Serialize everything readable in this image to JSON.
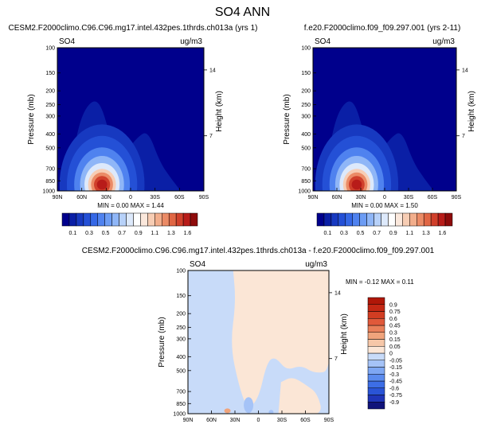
{
  "figure": {
    "title": "SO4 ANN"
  },
  "chart_data": [
    {
      "type": "heatmap",
      "panel": "top-left",
      "title": "CESM2.F2000climo.C96.C96.mg17.intel.432pes.1thrds.ch013a (yrs 1)",
      "left_label": "SO4",
      "right_label": "ug/m3",
      "ylabel": "Pressure (mb)",
      "y2label": "Height (km)",
      "xticks": [
        "90N",
        "60N",
        "30N",
        "0",
        "30S",
        "60S",
        "90S"
      ],
      "yticks": [
        "100",
        "150",
        "200",
        "250",
        "300",
        "400",
        "500",
        "700",
        "850",
        "1000"
      ],
      "y2ticks": [
        "14",
        "7"
      ],
      "ylim": [
        1000,
        100
      ],
      "y_scale": "log",
      "stats": "MIN =  0.00  MAX =  1.44",
      "min": 0.0,
      "max": 1.44,
      "colorbar": {
        "placement": "bottom",
        "colors": [
          "#00008c",
          "#0a1fa6",
          "#1739c0",
          "#2450d6",
          "#3568e6",
          "#4f82ef",
          "#6c9cf4",
          "#8fb6f7",
          "#b7d1f9",
          "#dde9fb",
          "#ffffff",
          "#fbe8dc",
          "#f7cdb4",
          "#f2ae8c",
          "#eb8b66",
          "#e06644",
          "#d0402b",
          "#b81c19",
          "#8e0b0b"
        ],
        "tick_labels": [
          "0.1",
          "0.3",
          "0.5",
          "0.7",
          "0.9",
          "1.1",
          "1.3",
          "1.6"
        ]
      }
    },
    {
      "type": "heatmap",
      "panel": "top-right",
      "title": "f.e20.F2000climo.f09_f09.297.001 (yrs 2-11)",
      "left_label": "SO4",
      "right_label": "ug/m3",
      "ylabel": "Pressure (mb)",
      "y2label": "Height (km)",
      "xticks": [
        "90N",
        "60N",
        "30N",
        "0",
        "30S",
        "60S",
        "90S"
      ],
      "yticks": [
        "100",
        "150",
        "200",
        "250",
        "300",
        "400",
        "500",
        "700",
        "850",
        "1000"
      ],
      "y2ticks": [
        "14",
        "7"
      ],
      "ylim": [
        1000,
        100
      ],
      "y_scale": "log",
      "stats": "MIN =  0.00  MAX =  1.50",
      "min": 0.0,
      "max": 1.5,
      "colorbar": {
        "placement": "bottom",
        "colors": [
          "#00008c",
          "#0a1fa6",
          "#1739c0",
          "#2450d6",
          "#3568e6",
          "#4f82ef",
          "#6c9cf4",
          "#8fb6f7",
          "#b7d1f9",
          "#dde9fb",
          "#ffffff",
          "#fbe8dc",
          "#f7cdb4",
          "#f2ae8c",
          "#eb8b66",
          "#e06644",
          "#d0402b",
          "#b81c19",
          "#8e0b0b"
        ],
        "tick_labels": [
          "0.1",
          "0.3",
          "0.5",
          "0.7",
          "0.9",
          "1.1",
          "1.3",
          "1.6"
        ]
      }
    },
    {
      "type": "heatmap",
      "panel": "bottom-difference",
      "title": "CESM2.F2000climo.C96.C96.mg17.intel.432pes.1thrds.ch013a - f.e20.F2000climo.f09_f09.297.001",
      "left_label": "SO4",
      "right_label": "ug/m3",
      "ylabel": "Pressure (mb)",
      "y2label": "Height (km)",
      "xticks": [
        "90N",
        "60N",
        "30N",
        "0",
        "30S",
        "60S",
        "90S"
      ],
      "yticks": [
        "100",
        "150",
        "200",
        "250",
        "300",
        "400",
        "500",
        "700",
        "850",
        "1000"
      ],
      "y2ticks": [
        "14",
        "7"
      ],
      "ylim": [
        1000,
        100
      ],
      "y_scale": "log",
      "stats": "MIN = -0.12  MAX =  0.11",
      "min": -0.12,
      "max": 0.11,
      "colorbar": {
        "placement": "right",
        "colors": [
          "#10137a",
          "#1f35b8",
          "#2a54d6",
          "#3d6ee6",
          "#5b8bee",
          "#7ea7f3",
          "#a5c3f7",
          "#c8dbf9",
          "#fbe6d6",
          "#f6c7a8",
          "#f0a47c",
          "#e9805a",
          "#e0593a",
          "#d23d22",
          "#c42814",
          "#b01708"
        ],
        "tick_labels": [
          "0.9",
          "0.75",
          "0.6",
          "0.45",
          "0.3",
          "0.15",
          "0.05",
          "0",
          "-0.05",
          "-0.15",
          "-0.3",
          "-0.45",
          "-0.6",
          "-0.75",
          "-0.9"
        ]
      }
    }
  ]
}
